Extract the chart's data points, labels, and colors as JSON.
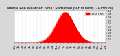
{
  "title": "Milwaukee Weather  Solar Radiation per Minute (24 Hours)",
  "bg_color": "#d8d8d8",
  "plot_bg_color": "#ffffff",
  "fill_color": "#ff0000",
  "line_color": "#cc0000",
  "legend_color": "#ff0000",
  "grid_color": "#aaaaaa",
  "ylim": [
    0,
    1.0
  ],
  "xlim": [
    0,
    1440
  ],
  "peak_minute": 800,
  "peak_value": 0.95,
  "sigma": 145,
  "y_ticks": [
    0.1,
    0.2,
    0.3,
    0.4,
    0.5,
    0.6,
    0.7,
    0.8,
    0.9,
    1.0
  ],
  "x_tick_minutes": [
    0,
    60,
    120,
    180,
    240,
    300,
    360,
    420,
    480,
    540,
    600,
    660,
    720,
    780,
    840,
    900,
    960,
    1020,
    1080,
    1140,
    1200,
    1260,
    1320,
    1380,
    1440
  ],
  "x_tick_labels": [
    "12a",
    "1a",
    "2a",
    "3a",
    "4a",
    "5a",
    "6a",
    "7a",
    "8a",
    "9a",
    "10a",
    "11a",
    "12p",
    "1p",
    "2p",
    "3p",
    "4p",
    "5p",
    "6p",
    "7p",
    "8p",
    "9p",
    "10p",
    "11p",
    "12a"
  ],
  "title_fontsize": 3.8,
  "tick_fontsize": 2.8,
  "legend_label": "Solar Rad",
  "legend_fontsize": 3.0
}
